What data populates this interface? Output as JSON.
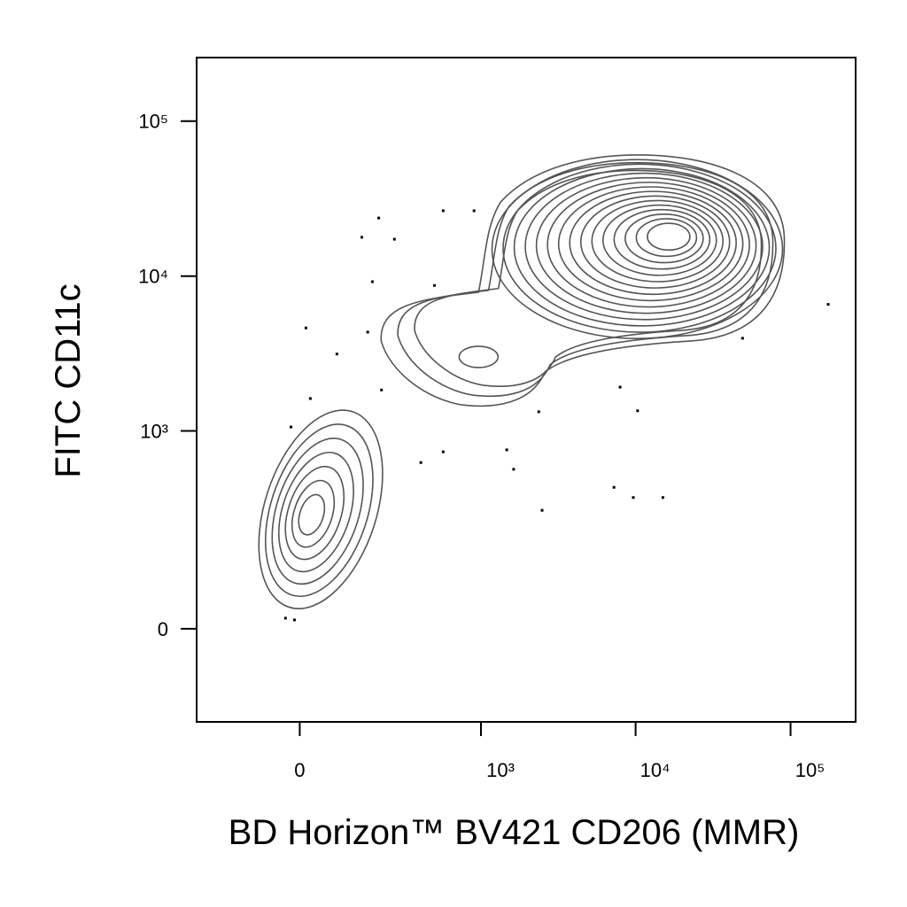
{
  "chart_data": {
    "type": "contour",
    "x_label": "BD Horizon™ BV421 CD206 (MMR)",
    "y_label": "FITC CD11c",
    "xscale": "biexponential",
    "yscale": "biexponential",
    "xlim": [
      -300,
      263000
    ],
    "ylim": [
      -198,
      257000
    ],
    "xticks": [
      0,
      {
        "value": 1000,
        "label": "10³"
      },
      {
        "value": 10000,
        "label": "10⁴"
      },
      {
        "value": 100000,
        "label": "10⁵"
      }
    ],
    "yticks": [
      0,
      {
        "value": 1000,
        "label": "10³"
      },
      {
        "value": 10000,
        "label": "10⁴"
      },
      {
        "value": 100000,
        "label": "10⁵"
      }
    ],
    "color": "#555555",
    "populations": [
      {
        "x": 21,
        "y": 275
      },
      {
        "x": 965,
        "y": 3010
      },
      {
        "x": 16900,
        "y": 18200
      }
    ],
    "points": {
      "x": [
        199,
        144,
        565,
        902,
        261,
        177,
        494,
        12.5,
        79,
        162,
        209,
        21.5,
        -17.8,
        400,
        565,
        1470,
        1630,
        2490,
        7250,
        9660,
        15000,
        10300,
        7940,
        175000,
        -29,
        -10.7,
        2370,
        49000
      ],
      "y": [
        23700,
        17800,
        26400,
        26400,
        17300,
        9200,
        8700,
        4630,
        3140,
        4350,
        1840,
        1620,
        1060,
        622,
        731,
        753,
        562,
        299,
        427,
        365,
        365,
        1350,
        1920,
        6570,
        16.8,
        14,
        1330,
        3970
      ]
    }
  }
}
